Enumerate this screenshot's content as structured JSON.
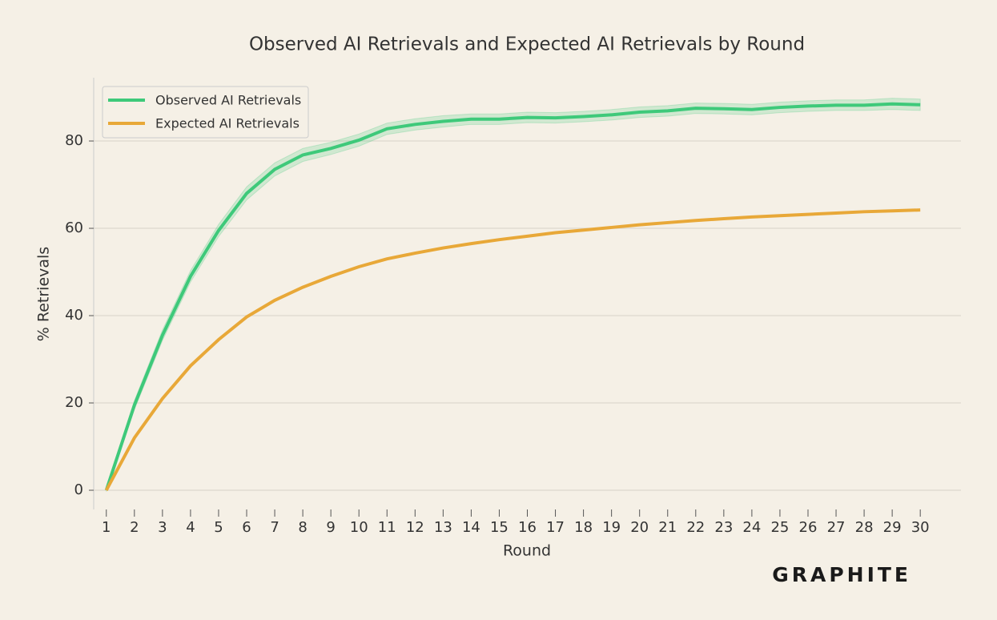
{
  "chart_data": {
    "type": "line",
    "title": "Observed AI Retrievals and Expected AI Retrievals by Round",
    "x_label": "Round",
    "y_label": "% Retrievals",
    "watermark": "GRAPHITE",
    "x": [
      1,
      2,
      3,
      4,
      5,
      6,
      7,
      8,
      9,
      10,
      11,
      12,
      13,
      14,
      15,
      16,
      17,
      18,
      19,
      20,
      21,
      22,
      23,
      24,
      25,
      26,
      27,
      28,
      29,
      30
    ],
    "xlim": [
      0.55,
      31.45
    ],
    "xticks": [
      1,
      2,
      3,
      4,
      5,
      6,
      7,
      8,
      9,
      10,
      11,
      12,
      13,
      14,
      15,
      16,
      17,
      18,
      19,
      20,
      21,
      22,
      23,
      24,
      25,
      26,
      27,
      28,
      29,
      30
    ],
    "ylim": [
      -4.4,
      94.5
    ],
    "yticks": [
      0,
      20,
      40,
      60,
      80
    ],
    "grid": true,
    "legend": "upper left",
    "series": [
      {
        "name": "Observed AI Retrievals",
        "color": "#3ec97a",
        "values": [
          0,
          19.5,
          35.5,
          49,
          59.5,
          68,
          73.5,
          76.8,
          78.3,
          80.2,
          82.8,
          83.8,
          84.5,
          85,
          85,
          85.4,
          85.3,
          85.6,
          86,
          86.6,
          86.9,
          87.5,
          87.4,
          87.2,
          87.7,
          88,
          88.2,
          88.2,
          88.5,
          88.3
        ],
        "error": [
          0.3,
          1,
          1.2,
          1.3,
          1.4,
          1.5,
          1.5,
          1.5,
          1.4,
          1.4,
          1.3,
          1.3,
          1.3,
          1.2,
          1.2,
          1.2,
          1.2,
          1.2,
          1.2,
          1.2,
          1.2,
          1.2,
          1.2,
          1.2,
          1.2,
          1.2,
          1.2,
          1.2,
          1.3,
          1.3
        ]
      },
      {
        "name": "Expected AI Retrievals",
        "color": "#e8a838",
        "values": [
          0,
          12,
          21,
          28.5,
          34.5,
          39.7,
          43.5,
          46.5,
          49,
          51.2,
          53,
          54.3,
          55.5,
          56.5,
          57.4,
          58.2,
          59,
          59.6,
          60.2,
          60.8,
          61.3,
          61.8,
          62.2,
          62.6,
          62.9,
          63.2,
          63.5,
          63.8,
          64,
          64.2
        ]
      }
    ]
  }
}
